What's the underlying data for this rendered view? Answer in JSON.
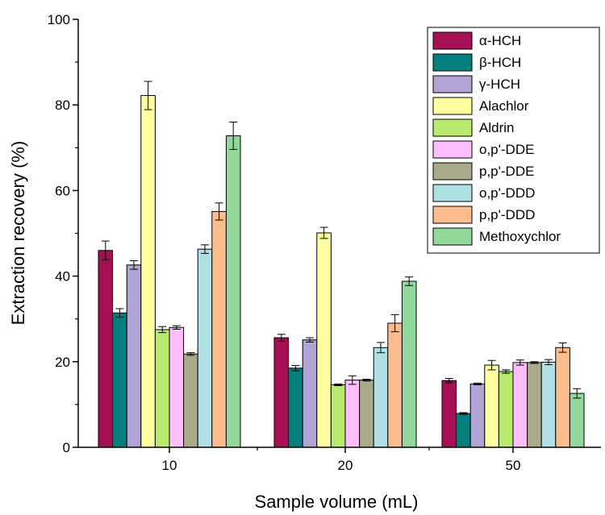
{
  "chart_data": {
    "type": "bar",
    "title": "",
    "xlabel": "Sample volume (mL)",
    "ylabel": "Extraction recovery (%)",
    "ylim": [
      0,
      100
    ],
    "yticks": [
      0,
      20,
      40,
      60,
      80,
      100
    ],
    "categories": [
      "10",
      "20",
      "50"
    ],
    "legend_position": "top-right",
    "grid": false,
    "series": [
      {
        "name": "α-HCH",
        "color": "#a50f54",
        "values": [
          46.0,
          25.6,
          15.6
        ],
        "errors": [
          2.2,
          0.8,
          0.5
        ]
      },
      {
        "name": "β-HCH",
        "color": "#03807e",
        "values": [
          31.4,
          18.5,
          7.9
        ],
        "errors": [
          1.0,
          0.6,
          0.2
        ]
      },
      {
        "name": "γ-HCH",
        "color": "#b2a3d5",
        "values": [
          42.6,
          25.1,
          14.8
        ],
        "errors": [
          1.0,
          0.5,
          0.2
        ]
      },
      {
        "name": "Alachlor",
        "color": "#ffff9f",
        "values": [
          82.2,
          50.1,
          19.2
        ],
        "errors": [
          3.3,
          1.3,
          1.1
        ]
      },
      {
        "name": "Aldrin",
        "color": "#b7ea6d",
        "values": [
          27.5,
          14.6,
          17.7
        ],
        "errors": [
          0.7,
          0.2,
          0.4
        ]
      },
      {
        "name": "o,p'-DDE",
        "color": "#fdbffe",
        "values": [
          28.0,
          15.7,
          19.8
        ],
        "errors": [
          0.4,
          1.0,
          0.6
        ]
      },
      {
        "name": "p,p'-DDE",
        "color": "#a9aa8a",
        "values": [
          21.8,
          15.7,
          19.8
        ],
        "errors": [
          0.3,
          0.2,
          0.2
        ]
      },
      {
        "name": "o,p'-DDD",
        "color": "#b0e0e6",
        "values": [
          46.3,
          23.3,
          19.9
        ],
        "errors": [
          1.0,
          1.2,
          0.6
        ]
      },
      {
        "name": "p,p'-DDD",
        "color": "#fcbc8c",
        "values": [
          55.1,
          29.0,
          23.3
        ],
        "errors": [
          2.0,
          2.0,
          1.1
        ]
      },
      {
        "name": "Methoxychlor",
        "color": "#93d89b",
        "values": [
          72.8,
          38.8,
          12.6
        ],
        "errors": [
          3.2,
          1.0,
          1.1
        ]
      }
    ]
  }
}
